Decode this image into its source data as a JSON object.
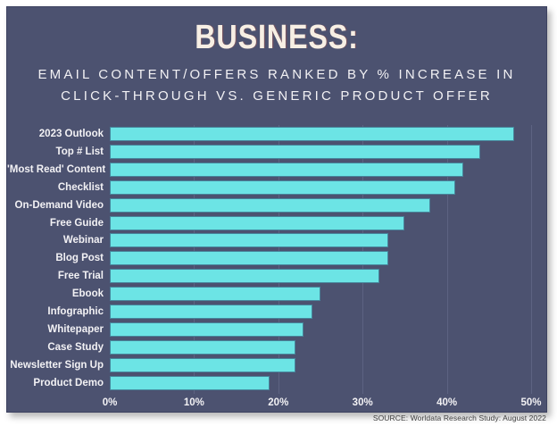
{
  "title": "BUSINESS:",
  "subtitle": {
    "line1": "EMAIL CONTENT/OFFERS RANKED BY % INCREASE IN",
    "line2": "CLICK-THROUGH VS. GENERIC PRODUCT OFFER"
  },
  "source": "SOURCE: Worldata Research Study: August 2022",
  "colors": {
    "page_bg": "#ffffff",
    "panel_bg": "#4c5270",
    "bar_fill": "#6ce4e5",
    "grid_line": "#5d6382",
    "title_color": "#f7efe4",
    "text_color": "#f2f1f4",
    "source_color": "#3f3f3f"
  },
  "chart_data": {
    "type": "bar",
    "orientation": "horizontal",
    "title": "BUSINESS: EMAIL CONTENT/OFFERS RANKED BY % INCREASE IN CLICK-THROUGH VS. GENERIC PRODUCT OFFER",
    "categories": [
      "2023 Outlook",
      "Top # List",
      "'Most Read' Content",
      "Checklist",
      "On-Demand Video",
      "Free Guide",
      "Webinar",
      "Blog Post",
      "Free Trial",
      "Ebook",
      "Infographic",
      "Whitepaper",
      "Case Study",
      "Newsletter Sign Up",
      "Product Demo"
    ],
    "values": [
      48,
      44,
      42,
      41,
      38,
      35,
      33,
      33,
      32,
      25,
      24,
      23,
      22,
      22,
      19
    ],
    "unit": "%",
    "xlabel": "",
    "ylabel": "",
    "xlim": [
      0,
      50
    ],
    "x_ticks": [
      "0%",
      "10%",
      "20%",
      "30%",
      "40%",
      "50%"
    ],
    "x_tick_values": [
      0,
      10,
      20,
      30,
      40,
      50
    ],
    "grid": true,
    "legend": false
  }
}
